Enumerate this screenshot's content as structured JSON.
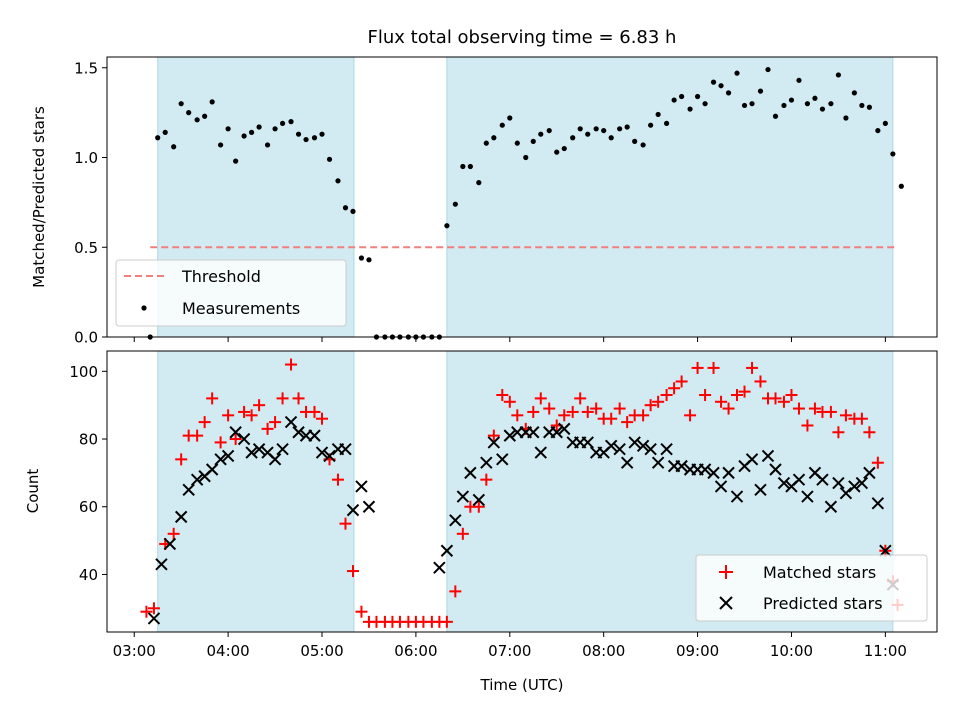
{
  "title": "Flux total observing time = 6.83 h",
  "chart_data": [
    {
      "type": "scatter",
      "panel": "top",
      "ylabel": "Matched/Predicted stars",
      "ylim": [
        0,
        1.56
      ],
      "yticks": [
        0.0,
        0.5,
        1.0,
        1.5
      ],
      "ytick_labels": [
        "0.0",
        "0.5",
        "1.0",
        "1.5"
      ],
      "xlim": [
        2.71,
        11.55
      ],
      "shaded_intervals": [
        [
          3.25,
          5.34
        ],
        [
          6.33,
          11.08
        ]
      ],
      "shade_color": "#add8e6",
      "threshold": {
        "name": "Threshold",
        "y": 0.5,
        "x_range": [
          3.17,
          11.13
        ],
        "color": "#f08080"
      },
      "legend_location": "lower left",
      "legend": [
        "Threshold",
        "Measurements"
      ],
      "series": [
        {
          "name": "Measurements",
          "marker": "dot",
          "color": "#000000",
          "x": [
            3.17,
            3.25,
            3.33,
            3.42,
            3.5,
            3.58,
            3.67,
            3.75,
            3.83,
            3.92,
            4.0,
            4.08,
            4.17,
            4.25,
            4.33,
            4.42,
            4.5,
            4.58,
            4.67,
            4.75,
            4.83,
            4.92,
            5.0,
            5.08,
            5.17,
            5.25,
            5.33,
            5.42,
            5.5,
            5.58,
            5.67,
            5.75,
            5.83,
            5.92,
            6.0,
            6.08,
            6.17,
            6.25,
            6.33,
            6.42,
            6.5,
            6.58,
            6.67,
            6.75,
            6.83,
            6.92,
            7.0,
            7.08,
            7.17,
            7.25,
            7.33,
            7.42,
            7.5,
            7.58,
            7.67,
            7.75,
            7.83,
            7.92,
            8.0,
            8.08,
            8.17,
            8.25,
            8.33,
            8.42,
            8.5,
            8.58,
            8.67,
            8.75,
            8.83,
            8.92,
            9.0,
            9.08,
            9.17,
            9.25,
            9.33,
            9.42,
            9.5,
            9.58,
            9.67,
            9.75,
            9.83,
            9.92,
            10.0,
            10.08,
            10.17,
            10.25,
            10.33,
            10.42,
            10.5,
            10.58,
            10.67,
            10.75,
            10.83,
            10.92,
            11.0,
            11.08,
            11.17
          ],
          "y": [
            0.0,
            1.11,
            1.14,
            1.06,
            1.3,
            1.25,
            1.21,
            1.23,
            1.31,
            1.07,
            1.16,
            0.98,
            1.12,
            1.14,
            1.17,
            1.07,
            1.16,
            1.19,
            1.2,
            1.13,
            1.1,
            1.11,
            1.13,
            0.99,
            0.87,
            0.72,
            0.7,
            0.44,
            0.43,
            0.0,
            0.0,
            0.0,
            0.0,
            0.0,
            0.0,
            0.0,
            0.0,
            0.0,
            0.62,
            0.74,
            0.95,
            0.95,
            0.86,
            1.08,
            1.11,
            1.18,
            1.22,
            1.08,
            1.0,
            1.09,
            1.13,
            1.15,
            1.03,
            1.05,
            1.11,
            1.16,
            1.13,
            1.16,
            1.15,
            1.11,
            1.16,
            1.17,
            1.09,
            1.07,
            1.18,
            1.24,
            1.19,
            1.32,
            1.34,
            1.27,
            1.34,
            1.3,
            1.42,
            1.4,
            1.36,
            1.47,
            1.29,
            1.3,
            1.37,
            1.49,
            1.23,
            1.29,
            1.32,
            1.43,
            1.3,
            1.33,
            1.27,
            1.3,
            1.46,
            1.22,
            1.36,
            1.29,
            1.28,
            1.15,
            1.19,
            1.02,
            0.84
          ]
        }
      ]
    },
    {
      "type": "scatter",
      "panel": "bottom",
      "xlabel": "Time (UTC)",
      "ylabel": "Count",
      "ylim": [
        23,
        106
      ],
      "yticks": [
        40,
        60,
        80,
        100
      ],
      "ytick_labels": [
        "40",
        "60",
        "80",
        "100"
      ],
      "xlim": [
        2.71,
        11.55
      ],
      "xticks": [
        3,
        4,
        5,
        6,
        7,
        8,
        9,
        10,
        11
      ],
      "xtick_labels": [
        "03:00",
        "04:00",
        "05:00",
        "06:00",
        "07:00",
        "08:00",
        "09:00",
        "10:00",
        "11:00"
      ],
      "shaded_intervals": [
        [
          3.25,
          5.34
        ],
        [
          6.33,
          11.08
        ]
      ],
      "shade_color": "#add8e6",
      "legend_location": "lower right",
      "legend": [
        "Matched stars",
        "Predicted stars"
      ],
      "series": [
        {
          "name": "Matched stars",
          "marker": "plus",
          "color": "#ff0000",
          "x": [
            3.13,
            3.21,
            3.33,
            3.42,
            3.5,
            3.58,
            3.67,
            3.75,
            3.83,
            3.92,
            4.0,
            4.08,
            4.17,
            4.25,
            4.33,
            4.42,
            4.5,
            4.58,
            4.67,
            4.75,
            4.83,
            4.92,
            5.0,
            5.08,
            5.17,
            5.25,
            5.33,
            5.42,
            5.5,
            5.58,
            5.67,
            5.75,
            5.83,
            5.92,
            6.0,
            6.08,
            6.17,
            6.25,
            6.33,
            6.42,
            6.5,
            6.58,
            6.67,
            6.75,
            6.83,
            6.92,
            7.0,
            7.08,
            7.17,
            7.25,
            7.33,
            7.42,
            7.5,
            7.58,
            7.67,
            7.75,
            7.83,
            7.92,
            8.0,
            8.08,
            8.17,
            8.25,
            8.33,
            8.42,
            8.5,
            8.58,
            8.67,
            8.75,
            8.83,
            8.92,
            9.0,
            9.08,
            9.17,
            9.25,
            9.33,
            9.42,
            9.5,
            9.58,
            9.67,
            9.75,
            9.83,
            9.92,
            10.0,
            10.08,
            10.17,
            10.25,
            10.33,
            10.42,
            10.5,
            10.58,
            10.67,
            10.75,
            10.83,
            10.92,
            11.0,
            11.08,
            11.13
          ],
          "y": [
            29,
            30,
            49,
            52,
            74,
            81,
            81,
            85,
            92,
            79,
            87,
            80,
            88,
            87,
            90,
            83,
            85,
            92,
            102,
            92,
            88,
            88,
            86,
            74,
            68,
            55,
            41,
            29,
            26,
            26,
            26,
            26,
            26,
            26,
            26,
            26,
            26,
            26,
            26,
            35,
            52,
            60,
            60,
            68,
            81,
            93,
            91,
            87,
            83,
            88,
            92,
            89,
            84,
            87,
            88,
            92,
            88,
            89,
            86,
            86,
            89,
            85,
            87,
            87,
            90,
            91,
            93,
            95,
            97,
            87,
            101,
            93,
            101,
            91,
            89,
            93,
            94,
            101,
            97,
            92,
            92,
            91,
            93,
            89,
            84,
            89,
            88,
            88,
            82,
            87,
            86,
            86,
            82,
            73,
            47,
            38,
            31
          ]
        },
        {
          "name": "Predicted stars",
          "marker": "x",
          "color": "#000000",
          "x": [
            3.21,
            3.29,
            3.38,
            3.5,
            3.58,
            3.67,
            3.75,
            3.83,
            3.92,
            4.0,
            4.08,
            4.17,
            4.25,
            4.33,
            4.42,
            4.5,
            4.58,
            4.67,
            4.75,
            4.83,
            4.92,
            5.0,
            5.08,
            5.17,
            5.25,
            5.33,
            5.42,
            5.5,
            6.25,
            6.33,
            6.42,
            6.5,
            6.58,
            6.67,
            6.75,
            6.83,
            6.92,
            7.0,
            7.08,
            7.17,
            7.25,
            7.33,
            7.42,
            7.5,
            7.58,
            7.67,
            7.75,
            7.83,
            7.92,
            8.0,
            8.08,
            8.17,
            8.25,
            8.33,
            8.42,
            8.5,
            8.58,
            8.67,
            8.75,
            8.83,
            8.92,
            9.0,
            9.08,
            9.17,
            9.25,
            9.33,
            9.42,
            9.5,
            9.58,
            9.67,
            9.75,
            9.83,
            9.92,
            10.0,
            10.08,
            10.17,
            10.25,
            10.33,
            10.42,
            10.5,
            10.58,
            10.67,
            10.75,
            10.83,
            10.92,
            11.0,
            11.08
          ],
          "y": [
            27,
            43,
            49,
            57,
            65,
            68,
            69,
            71,
            74,
            75,
            82,
            80,
            76,
            77,
            76,
            74,
            77,
            85,
            82,
            81,
            81,
            76,
            75,
            77,
            77,
            59,
            66,
            60,
            42,
            47,
            56,
            63,
            70,
            62,
            73,
            79,
            74,
            81,
            82,
            82,
            82,
            76,
            82,
            82,
            83,
            79,
            79,
            79,
            76,
            76,
            78,
            77,
            73,
            79,
            78,
            77,
            73,
            77,
            72,
            72,
            71,
            71,
            71,
            70,
            66,
            70,
            63,
            72,
            74,
            65,
            75,
            71,
            67,
            66,
            68,
            63,
            70,
            68,
            60,
            67,
            64,
            66,
            67,
            70,
            61,
            47,
            37
          ]
        }
      ]
    }
  ]
}
